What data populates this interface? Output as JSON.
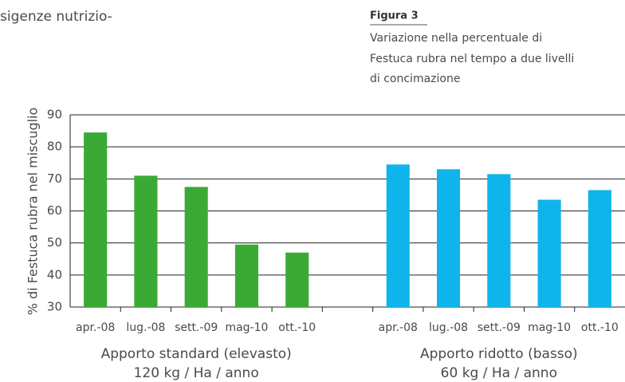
{
  "document": {
    "text_fragment": "sigenze nutrizio-"
  },
  "figure": {
    "label": "Figura 3",
    "caption_lines": [
      "Variazione nella percentuale di",
      "Festuca rubra nel tempo a due livelli",
      "di concimazione"
    ]
  },
  "chart_data": {
    "type": "bar",
    "ylabel": "% di Festuca rubra nel miscuglio",
    "categories": [
      "apr.-08",
      "lug.-08",
      "sett.-09",
      "mag-10",
      "ott.-10",
      null,
      "apr.-08",
      "lug.-08",
      "sett.-09",
      "mag-10",
      "ott.-10"
    ],
    "series": [
      {
        "color": "#3aaa35",
        "values": [
          84.5,
          71,
          67.5,
          49.5,
          47,
          null,
          null,
          null,
          null,
          null,
          null
        ]
      },
      {
        "color": "#0fb4ea",
        "values": [
          null,
          null,
          null,
          null,
          null,
          null,
          74.5,
          73,
          71.5,
          63.5,
          66.5
        ]
      }
    ],
    "groups": [
      {
        "lines": [
          "Apporto standard (elevasto)",
          "120 kg / Ha / anno"
        ]
      },
      {
        "lines": [
          "Apporto ridotto (basso)",
          "60 kg / Ha / anno"
        ]
      }
    ],
    "ylim": [
      30,
      90
    ],
    "yticks": [
      30,
      40,
      50,
      60,
      70,
      80,
      90
    ],
    "grid": true
  }
}
